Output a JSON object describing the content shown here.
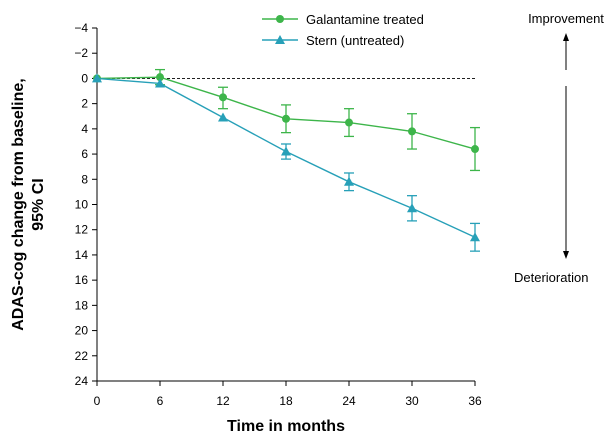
{
  "chart_data": {
    "type": "line",
    "xlabel": "Time in months",
    "ylabel": "ADAS-cog change from baseline, 95% CI",
    "ylabel_lines": [
      "ADAS-cog change from baseline,",
      "95% CI"
    ],
    "x_ticks": [
      0,
      6,
      12,
      18,
      24,
      30,
      36
    ],
    "y_ticks": [
      -4,
      -2,
      0,
      2,
      4,
      6,
      8,
      10,
      12,
      14,
      16,
      18,
      20,
      22,
      24
    ],
    "xlim": [
      0,
      36
    ],
    "ylim": [
      -4,
      24
    ],
    "y_inverted": true,
    "reference_line_y": 0,
    "legend_position": "top",
    "series": [
      {
        "name": "Galantamine treated",
        "color": "#3db54a",
        "marker": "circle",
        "x": [
          0,
          6,
          12,
          18,
          24,
          30,
          36
        ],
        "y": [
          0,
          -0.1,
          1.5,
          3.2,
          3.5,
          4.2,
          5.6
        ],
        "ci_low": [
          0,
          -0.7,
          0.7,
          2.1,
          2.4,
          2.8,
          3.9
        ],
        "ci_high": [
          0,
          0.5,
          2.4,
          4.3,
          4.6,
          5.6,
          7.3
        ]
      },
      {
        "name": "Stern (untreated)",
        "color": "#27a0b8",
        "marker": "triangle",
        "x": [
          0,
          6,
          12,
          18,
          24,
          30,
          36
        ],
        "y": [
          0,
          0.4,
          3.1,
          5.8,
          8.2,
          10.3,
          12.6
        ],
        "ci_low": [
          0,
          0.4,
          3.1,
          5.2,
          7.5,
          9.3,
          11.5
        ],
        "ci_high": [
          0,
          0.4,
          3.1,
          6.4,
          8.9,
          11.3,
          13.7
        ]
      }
    ],
    "annotations": {
      "top": "Improvement",
      "bottom": "Deterioration"
    }
  }
}
